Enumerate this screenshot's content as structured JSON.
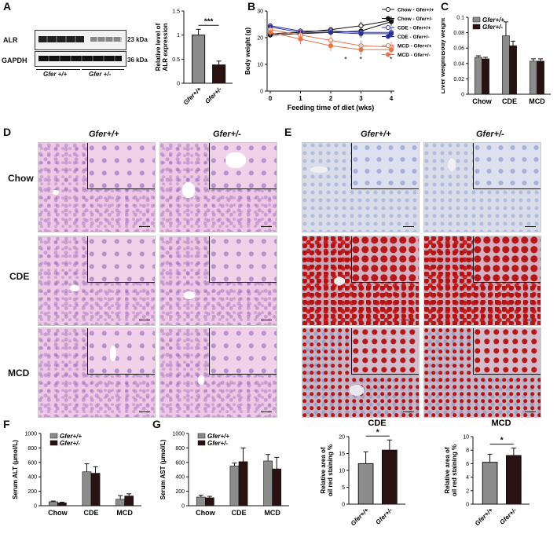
{
  "panels": {
    "A": "A",
    "B": "B",
    "C": "C",
    "D": "D",
    "E": "E",
    "F": "F",
    "G": "G"
  },
  "panelA": {
    "blot_labels": [
      "ALR",
      "GAPDH"
    ],
    "sizes": [
      "23 kDa",
      "36 kDa"
    ],
    "genotypes": [
      "Gfer +/+",
      "Gfer +/-"
    ],
    "ylabel": "Relative level of ALR expression",
    "sig": "***"
  },
  "panelB": {
    "ylabel": "Body weight (g)",
    "xlabel": "Feeding time of diet (wks)",
    "stars": [
      "*",
      "*",
      "*"
    ]
  },
  "panelC": {
    "ylabel": "Liver weight/Body weight"
  },
  "legend_genotypes": [
    "Gfer +/+",
    "Gfer +/-"
  ],
  "histology": {
    "col_headers": [
      "Gfer+/+",
      "Gfer+/-"
    ],
    "row_labels": [
      "Chow",
      "CDE",
      "MCD"
    ]
  },
  "panelF": {
    "ylabel": "Serum ALT (μmol/L)"
  },
  "panelG": {
    "ylabel": "Serum AST (μmol/L)"
  },
  "panelCDE": {
    "title": "CDE",
    "ylabel": "Relative area of oil red staining %",
    "sig": "*"
  },
  "panelMCD": {
    "title": "MCD",
    "ylabel": "Relative area of oil red staining %",
    "sig": "*"
  },
  "colors": {
    "wt": "#8c8c8c",
    "ko": "#2a1212",
    "black": "#111111",
    "blue": "#2b2f9a",
    "orange": "#e8734a"
  },
  "chart_data": [
    {
      "type": "bar",
      "id": "A",
      "categories": [
        "Gfer+/+",
        "Gfer+/-"
      ],
      "values": [
        1.0,
        0.38
      ],
      "errors": [
        0.12,
        0.08
      ],
      "ylim": [
        0,
        1.5
      ],
      "yticks": [
        0,
        0.5,
        1.0,
        1.5
      ],
      "ylabel": "Relative level of ALR expression"
    },
    {
      "type": "line",
      "id": "B",
      "x": [
        0,
        1,
        2,
        3,
        4
      ],
      "xticks": [
        0,
        1,
        2,
        3,
        4
      ],
      "ylim": [
        0,
        30
      ],
      "yticks": [
        0,
        10,
        20,
        30
      ],
      "xlabel": "Feeding time of diet (wks)",
      "ylabel": "Body weight (g)",
      "series": [
        {
          "name": "Chow - Gfer+/+",
          "color": "#111111",
          "marker": "open",
          "values": [
            21.5,
            22,
            23,
            24.5,
            26.5
          ],
          "err": [
            1,
            1,
            1,
            1.5,
            1.5
          ]
        },
        {
          "name": "Chow - Gfer+/-",
          "color": "#111111",
          "marker": "filled",
          "values": [
            21,
            21.5,
            22,
            22.5,
            26
          ],
          "err": [
            1,
            1,
            1,
            1.5,
            1.5
          ]
        },
        {
          "name": "CDE - Gfer+/+",
          "color": "#2b2f9a",
          "marker": "open",
          "values": [
            24.5,
            22.5,
            22.5,
            22,
            22
          ],
          "err": [
            1,
            1,
            1,
            1.5,
            1.5
          ]
        },
        {
          "name": "CDE - Gfer+/-",
          "color": "#2b2f9a",
          "marker": "filled",
          "values": [
            24,
            22,
            22,
            21.5,
            21.5
          ],
          "err": [
            1,
            1,
            1,
            1.5,
            1.5
          ]
        },
        {
          "name": "MCD - Gfer+/+",
          "color": "#e8734a",
          "marker": "open",
          "values": [
            23,
            21,
            19,
            17,
            16.5
          ],
          "err": [
            1.5,
            2,
            2,
            2,
            2
          ]
        },
        {
          "name": "MCD - Gfer+/-",
          "color": "#e8734a",
          "marker": "filled",
          "values": [
            22,
            19.5,
            17,
            15.5,
            15.5
          ],
          "err": [
            1.5,
            2,
            2,
            2,
            2
          ]
        }
      ]
    },
    {
      "type": "bar",
      "id": "C",
      "categories": [
        "Chow",
        "CDE",
        "MCD"
      ],
      "ylim": [
        0,
        0.1
      ],
      "yticks": [
        0,
        0.02,
        0.04,
        0.06,
        0.08,
        0.1
      ],
      "ylabel": "Liver weight/Body weight",
      "series": [
        {
          "name": "Gfer+/+",
          "values": [
            0.048,
            0.076,
            0.043
          ],
          "err": [
            0.002,
            0.018,
            0.003
          ]
        },
        {
          "name": "Gfer+/-",
          "values": [
            0.046,
            0.063,
            0.043
          ],
          "err": [
            0.002,
            0.006,
            0.003
          ]
        }
      ]
    },
    {
      "type": "bar",
      "id": "F",
      "categories": [
        "Chow",
        "CDE",
        "MCD"
      ],
      "ylim": [
        0,
        1000
      ],
      "yticks": [
        0,
        200,
        400,
        600,
        800,
        1000
      ],
      "ylabel": "Serum ALT (μmol/L)",
      "series": [
        {
          "name": "Gfer+/+",
          "values": [
            55,
            470,
            90
          ],
          "err": [
            10,
            110,
            50
          ]
        },
        {
          "name": "Gfer+/-",
          "values": [
            40,
            450,
            135
          ],
          "err": [
            10,
            90,
            30
          ]
        }
      ]
    },
    {
      "type": "bar",
      "id": "G",
      "categories": [
        "Chow",
        "CDE",
        "MCD"
      ],
      "ylim": [
        0,
        1000
      ],
      "yticks": [
        0,
        200,
        400,
        600,
        800,
        1000
      ],
      "ylabel": "Serum AST (μmol/L)",
      "series": [
        {
          "name": "Gfer+/+",
          "values": [
            120,
            550,
            620
          ],
          "err": [
            25,
            40,
            90
          ]
        },
        {
          "name": "Gfer+/-",
          "values": [
            110,
            610,
            510
          ],
          "err": [
            20,
            190,
            160
          ]
        }
      ]
    },
    {
      "type": "bar",
      "id": "CDEoil",
      "title": "CDE",
      "categories": [
        "Gfer+/+",
        "Gfer+/-"
      ],
      "values": [
        12,
        16
      ],
      "errors": [
        3.5,
        3
      ],
      "ylim": [
        0,
        20
      ],
      "yticks": [
        0,
        5,
        10,
        15,
        20
      ],
      "ylabel": "Relative area of oil red staining %"
    },
    {
      "type": "bar",
      "id": "MCDoil",
      "title": "MCD",
      "categories": [
        "Gfer+/+",
        "Gfer+/-"
      ],
      "values": [
        6.2,
        7.2
      ],
      "errors": [
        1.2,
        1.1
      ],
      "ylim": [
        0,
        10
      ],
      "yticks": [
        0,
        2,
        4,
        6,
        8,
        10
      ],
      "ylabel": "Relative area of oil red staining %"
    }
  ]
}
